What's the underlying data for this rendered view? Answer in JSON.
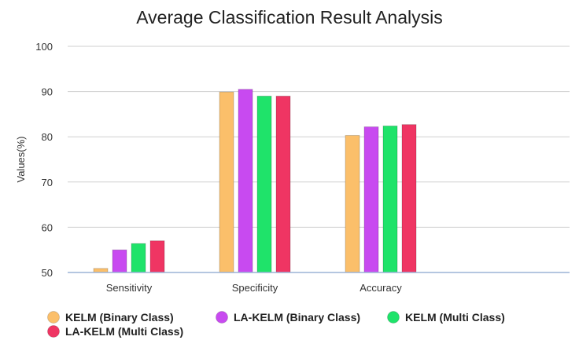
{
  "chart_data": {
    "type": "bar",
    "title": "Average Classification Result Analysis",
    "xlabel": "",
    "ylabel": "Values(%)",
    "ylim": [
      50,
      100
    ],
    "yticks": [
      50,
      60,
      70,
      80,
      90,
      100
    ],
    "grid": true,
    "legend_position": "bottom",
    "categories": [
      "Sensitivity",
      "Specificity",
      "Accuracy"
    ],
    "series": [
      {
        "name": "KELM (Binary Class)",
        "color": "#fbbf6a",
        "values": [
          50.9,
          89.9,
          80.3
        ]
      },
      {
        "name": "LA-KELM (Binary Class)",
        "color": "#c84af0",
        "values": [
          55.0,
          90.5,
          82.2
        ]
      },
      {
        "name": "KELM (Multi Class)",
        "color": "#1fe36a",
        "values": [
          56.4,
          89.0,
          82.4
        ]
      },
      {
        "name": "LA-KELM (Multi Class)",
        "color": "#ef3563",
        "values": [
          57.0,
          89.0,
          82.7
        ]
      }
    ]
  }
}
